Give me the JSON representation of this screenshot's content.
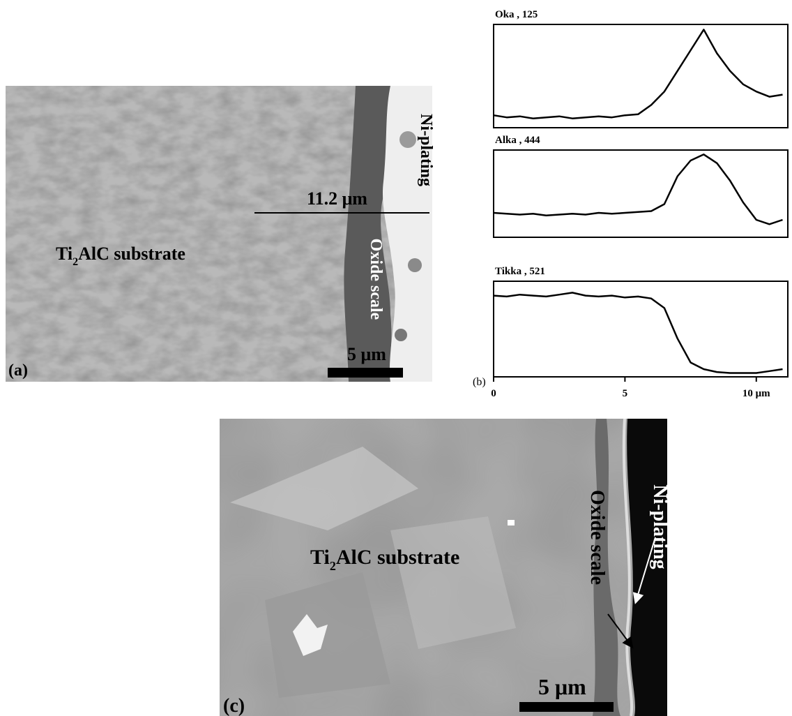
{
  "figure": {
    "panel_a": {
      "line_label": "11.2 μm",
      "ni_label": "Ni-plating",
      "oxide_label": "Oxide scale",
      "substrate_label": {
        "main": "Ti",
        "sub": "2",
        "rest": "AlC substrate"
      },
      "scale_label": "5 μm",
      "panel_label": "(a)"
    },
    "panel_b_label": "(b)",
    "panel_c": {
      "ni_label": "Ni-plating",
      "oxide_label": "Oxide scale",
      "substrate_label": {
        "main": "Ti",
        "sub": "2",
        "rest": "AlC substrate"
      },
      "scale_label": "5 μm",
      "panel_label": "(c)"
    }
  },
  "chart_data": [
    {
      "type": "line",
      "title": "Oka , 125",
      "x": [
        0,
        0.5,
        1,
        1.5,
        2,
        2.5,
        3,
        3.5,
        4,
        4.5,
        5,
        5.5,
        6,
        6.5,
        7,
        7.5,
        8,
        8.5,
        9,
        9.5,
        10,
        10.5,
        11
      ],
      "series": [
        {
          "color": "#000000",
          "values": [
            12,
            10,
            11,
            9,
            10,
            11,
            9,
            10,
            11,
            10,
            12,
            13,
            22,
            35,
            55,
            75,
            95,
            72,
            55,
            42,
            35,
            30,
            32
          ]
        }
      ],
      "xlim": [
        0,
        11.2
      ],
      "ylim": [
        0,
        100
      ]
    },
    {
      "type": "line",
      "title": "Alka , 444",
      "x": [
        0,
        0.5,
        1,
        1.5,
        2,
        2.5,
        3,
        3.5,
        4,
        4.5,
        5,
        5.5,
        6,
        6.5,
        7,
        7.5,
        8,
        8.5,
        9,
        9.5,
        10,
        10.5,
        11
      ],
      "series": [
        {
          "color": "#000000",
          "values": [
            28,
            27,
            26,
            27,
            25,
            26,
            27,
            26,
            28,
            27,
            28,
            29,
            30,
            38,
            70,
            88,
            95,
            85,
            65,
            40,
            20,
            15,
            20
          ]
        }
      ],
      "xlim": [
        0,
        11.2
      ],
      "ylim": [
        0,
        100
      ]
    },
    {
      "type": "line",
      "title": "Tikka , 521",
      "x": [
        0,
        0.5,
        1,
        1.5,
        2,
        2.5,
        3,
        3.5,
        4,
        4.5,
        5,
        5.5,
        6,
        6.5,
        7,
        7.5,
        8,
        8.5,
        9,
        9.5,
        10,
        10.5,
        11
      ],
      "series": [
        {
          "color": "#000000",
          "values": [
            85,
            84,
            86,
            85,
            84,
            86,
            88,
            85,
            84,
            85,
            83,
            84,
            82,
            72,
            40,
            15,
            8,
            5,
            4,
            4,
            4,
            6,
            8
          ]
        }
      ],
      "xlim": [
        0,
        11.2
      ],
      "ylim": [
        0,
        100
      ],
      "xticks": [
        0,
        5,
        {
          "value": 10,
          "label": "10 μm"
        }
      ]
    }
  ]
}
